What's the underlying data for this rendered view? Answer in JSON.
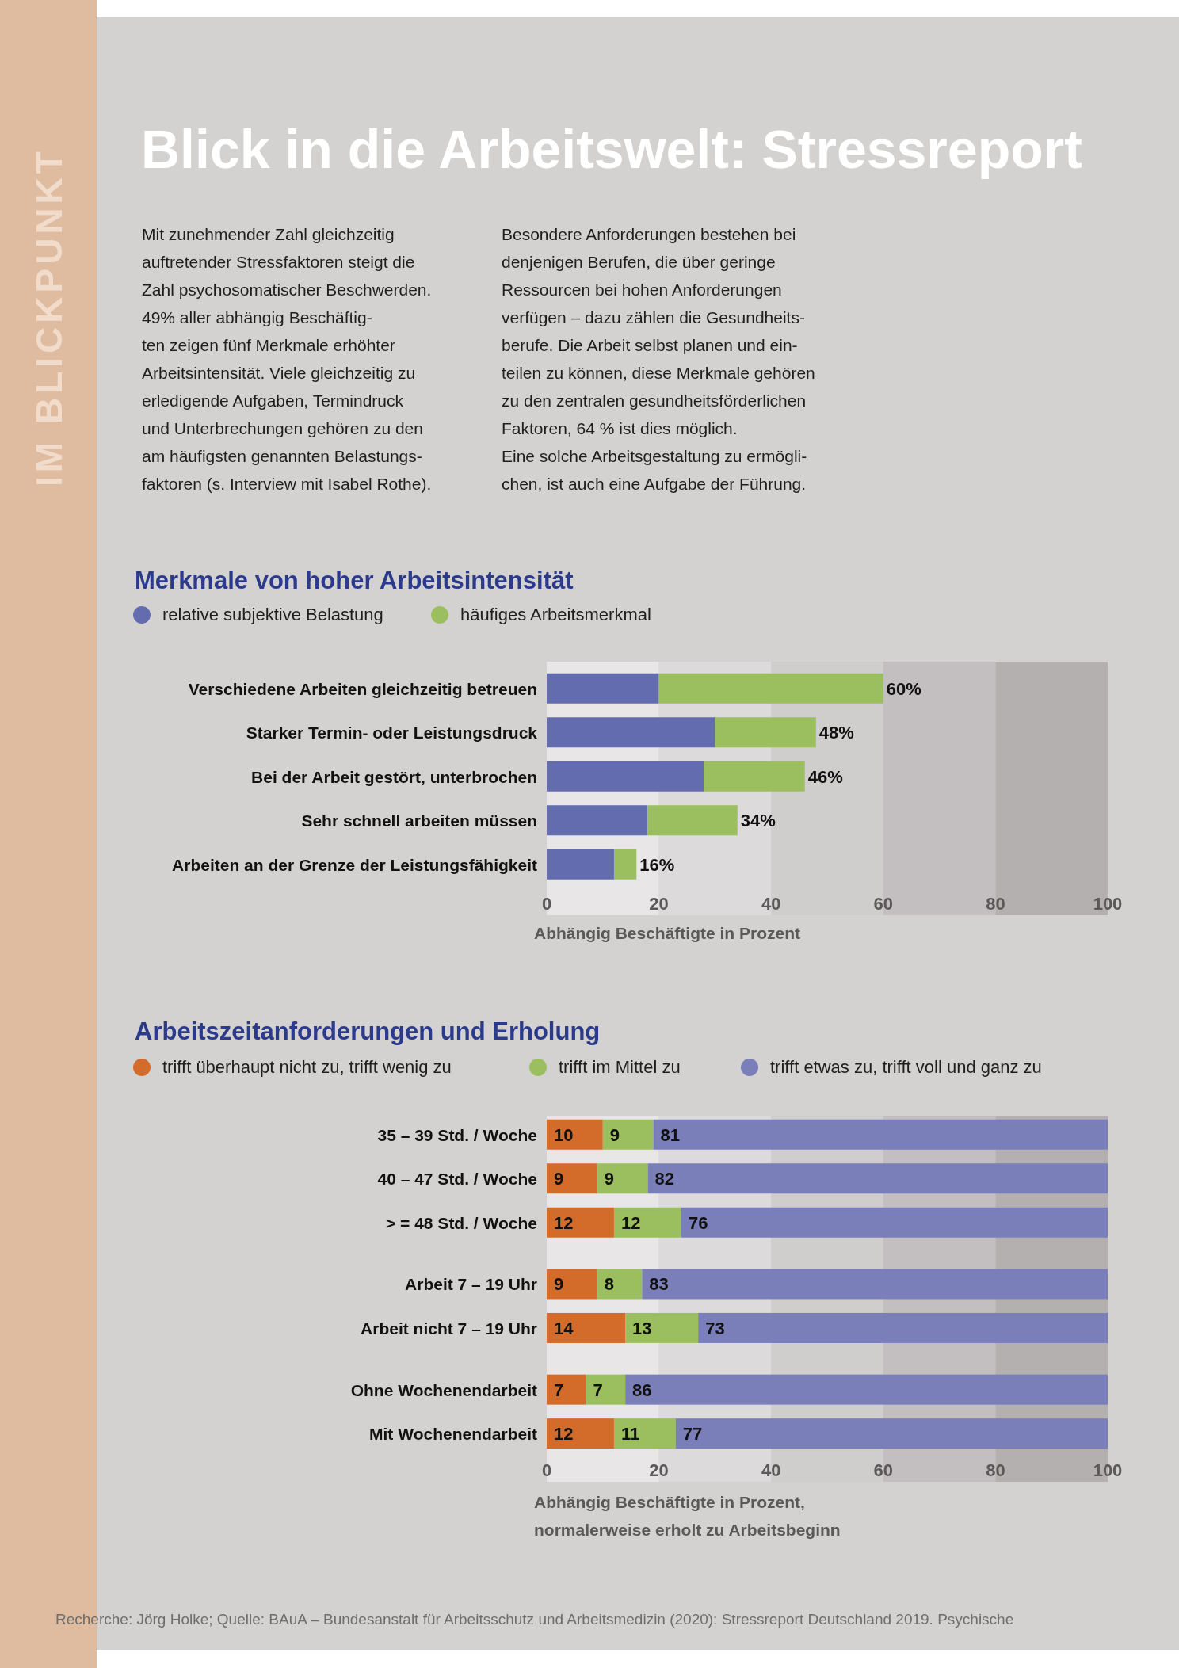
{
  "chart_data": [
    {
      "type": "bar",
      "orientation": "horizontal",
      "stacked": true,
      "title": "Merkmale von hoher Arbeitsintensität",
      "xlabel": "Abhängig Beschäftigte in Prozent",
      "categories": [
        "Verschiedene Arbeiten gleichzeitig betreuen",
        "Starker Termin- oder Leistungsdruck",
        "Bei der Arbeit gestört, unterbrochen",
        "Sehr schnell arbeiten müssen",
        "Arbeiten an der Grenze der Leistungsfähigkeit"
      ],
      "series": [
        {
          "name": "relative subjektive Belastung",
          "color": "#636caf",
          "values": [
            20,
            30,
            28,
            18,
            12
          ]
        },
        {
          "name": "häufiges Arbeitsmerkmal",
          "color": "#9bbf5f",
          "values": [
            40,
            18,
            18,
            16,
            4
          ]
        }
      ],
      "totals": [
        "60%",
        "48%",
        "46%",
        "34%",
        "16%"
      ],
      "xlim": [
        0,
        100
      ],
      "xticks": [
        0,
        20,
        40,
        60,
        80,
        100
      ],
      "legend": "top left",
      "bands": [
        {
          "axis": "x",
          "from": 0,
          "to": 20,
          "color": "#e8e6e7"
        },
        {
          "axis": "x",
          "from": 20,
          "to": 40,
          "color": "#dcdadb"
        },
        {
          "axis": "x",
          "from": 40,
          "to": 60,
          "color": "#d0cdcd"
        },
        {
          "axis": "x",
          "from": 60,
          "to": 80,
          "color": "#c3bfc0"
        },
        {
          "axis": "x",
          "from": 80,
          "to": 100,
          "color": "#b4b0b0"
        }
      ],
      "annotations": [
        "IM BLICKPUNKT",
        "Blick in die Arbeitswelt: Stressreport",
        "Mit zunehmender Zahl gleichzeitig\nauftretender Stressfaktoren steigt die\nZahl psychosomatischer Beschwerden.\n49% aller abhängig Beschäftig-\nten zeigen fünf Merkmale erhöhter\nArbeitsintensität. Viele gleichzeitig zu\nerledigende Aufgaben, Termindruck\nund Unterbrechungen gehören zu den\nam häufigsten genannten Belastungs-\nfaktoren (s. Interview mit Isabel Rothe).",
        "Besondere Anforderungen bestehen bei\ndenjenigen Berufen, die über geringe\nRessourcen bei hohen Anforderungen\nverfügen – dazu zählen die Gesundheits-\nberufe. Die Arbeit selbst planen und ein-\nteilen zu können, diese Merkmale gehören\nzu den zentralen gesundheitsförderlichen\nFaktoren, 64 % ist dies möglich.\nEine solche Arbeitsgestaltung zu ermögli-\nchen, ist auch eine Aufgabe der Führung."
      ]
    },
    {
      "type": "bar",
      "orientation": "horizontal",
      "stacked": true,
      "data_labels": true,
      "title": "Arbeitszeitanforderungen und Erholung",
      "xlabel": "Abhängig Beschäftigte in Prozent,\nnormalerweise erholt zu Arbeitsbeginn",
      "categories": [
        "35 – 39 Std. / Woche",
        "40 – 47 Std. / Woche",
        "> = 48 Std. / Woche",
        null,
        "Arbeit 7 – 19 Uhr",
        "Arbeit nicht 7 – 19 Uhr",
        null,
        "Ohne Wochenendarbeit",
        "Mit Wochenendarbeit"
      ],
      "series": [
        {
          "name": "trifft überhaupt nicht zu, trifft wenig zu",
          "color": "#d36b2b",
          "values": [
            10,
            9,
            12,
            null,
            9,
            14,
            null,
            7,
            12
          ]
        },
        {
          "name": "trifft im Mittel zu",
          "color": "#9bbf5f",
          "values": [
            9,
            9,
            12,
            null,
            8,
            13,
            null,
            7,
            11
          ]
        },
        {
          "name": "trifft etwas zu, trifft voll und ganz zu",
          "color": "#7a7fba",
          "values": [
            81,
            82,
            76,
            null,
            83,
            73,
            null,
            86,
            77
          ]
        }
      ],
      "xlim": [
        0,
        100
      ],
      "xticks": [
        0,
        20,
        40,
        60,
        80,
        100
      ],
      "legend": "top left",
      "bands": [
        {
          "axis": "x",
          "from": 0,
          "to": 20,
          "color": "#e8e6e7"
        },
        {
          "axis": "x",
          "from": 20,
          "to": 40,
          "color": "#dcdadb"
        },
        {
          "axis": "x",
          "from": 40,
          "to": 60,
          "color": "#d0cdcd"
        },
        {
          "axis": "x",
          "from": 60,
          "to": 80,
          "color": "#c3bfc0"
        },
        {
          "axis": "x",
          "from": 80,
          "to": 100,
          "color": "#b4b0b0"
        }
      ],
      "annotations": [
        "Recherche: Jörg Holke;   Quelle: BAuA – Bundesanstalt für Arbeitsschutz und Arbeitsmedizin (2020): Stressreport Deutschland 2019. Psychische"
      ]
    }
  ]
}
